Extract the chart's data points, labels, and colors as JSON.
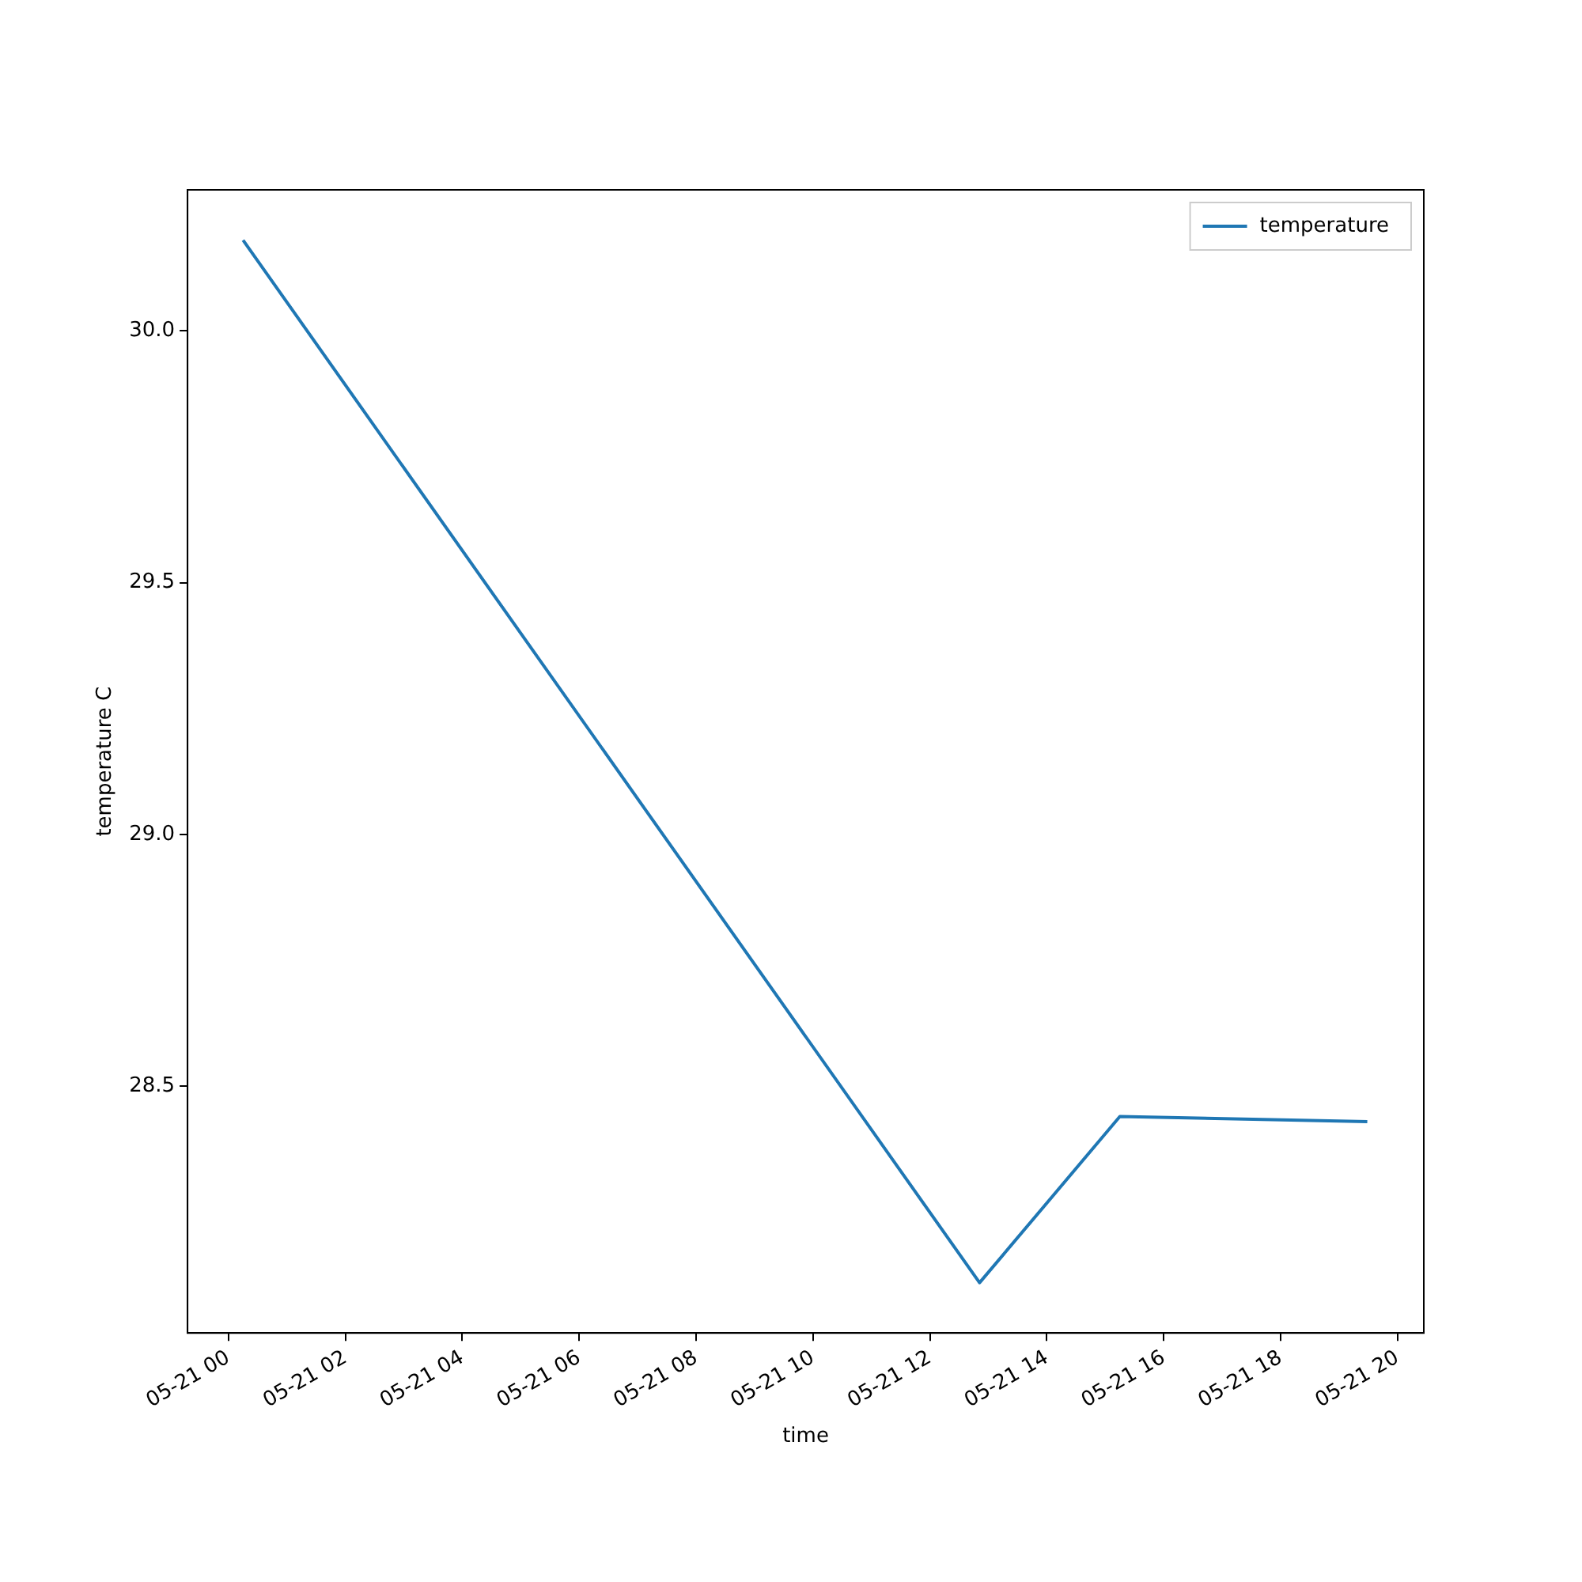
{
  "chart_data": {
    "type": "line",
    "xlabel": "time",
    "ylabel": "temperature C",
    "x": [
      "--05-21T00:15",
      "--05-21T12:51",
      "--05-21T15:15",
      "--05-21T19:29"
    ],
    "series": [
      {
        "name": "temperature",
        "color": "#1f77b4",
        "values": [
          30.18,
          28.11,
          28.44,
          28.43
        ]
      }
    ],
    "xlim": [
      "--05-20T23:18",
      "--05-21T20:27"
    ],
    "xticks": [
      {
        "value": "--05-21T00:00",
        "label": "05-21 00"
      },
      {
        "value": "--05-21T02:00",
        "label": "05-21 02"
      },
      {
        "value": "--05-21T04:00",
        "label": "05-21 04"
      },
      {
        "value": "--05-21T06:00",
        "label": "05-21 06"
      },
      {
        "value": "--05-21T08:00",
        "label": "05-21 08"
      },
      {
        "value": "--05-21T10:00",
        "label": "05-21 10"
      },
      {
        "value": "--05-21T12:00",
        "label": "05-21 12"
      },
      {
        "value": "--05-21T14:00",
        "label": "05-21 14"
      },
      {
        "value": "--05-21T16:00",
        "label": "05-21 16"
      },
      {
        "value": "--05-21T18:00",
        "label": "05-21 18"
      },
      {
        "value": "--05-21T20:00",
        "label": "05-21 20"
      }
    ],
    "ylim": [
      28.01,
      30.28
    ],
    "yticks": [
      {
        "value": 28.5,
        "label": "28.5"
      },
      {
        "value": 29,
        "label": "29.0"
      },
      {
        "value": 29.5,
        "label": "29.5"
      },
      {
        "value": 30,
        "label": "30.0"
      }
    ],
    "grid": false,
    "legend": "top right",
    "marker": "none",
    "line_style": "solid"
  }
}
